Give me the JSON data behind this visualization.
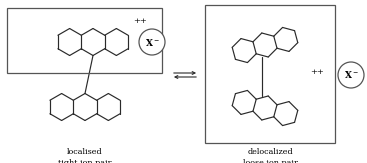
{
  "bg_color": "#ffffff",
  "line_color": "#2a2a2a",
  "box_color": "#555555",
  "text_color": "#000000",
  "fig_width": 3.67,
  "fig_height": 1.63,
  "dpi": 100,
  "label_left": "localised\ntight ion pair",
  "label_right": "delocalized\nloose ion pair",
  "charge_pp": "++",
  "anion_label": "X⁻"
}
